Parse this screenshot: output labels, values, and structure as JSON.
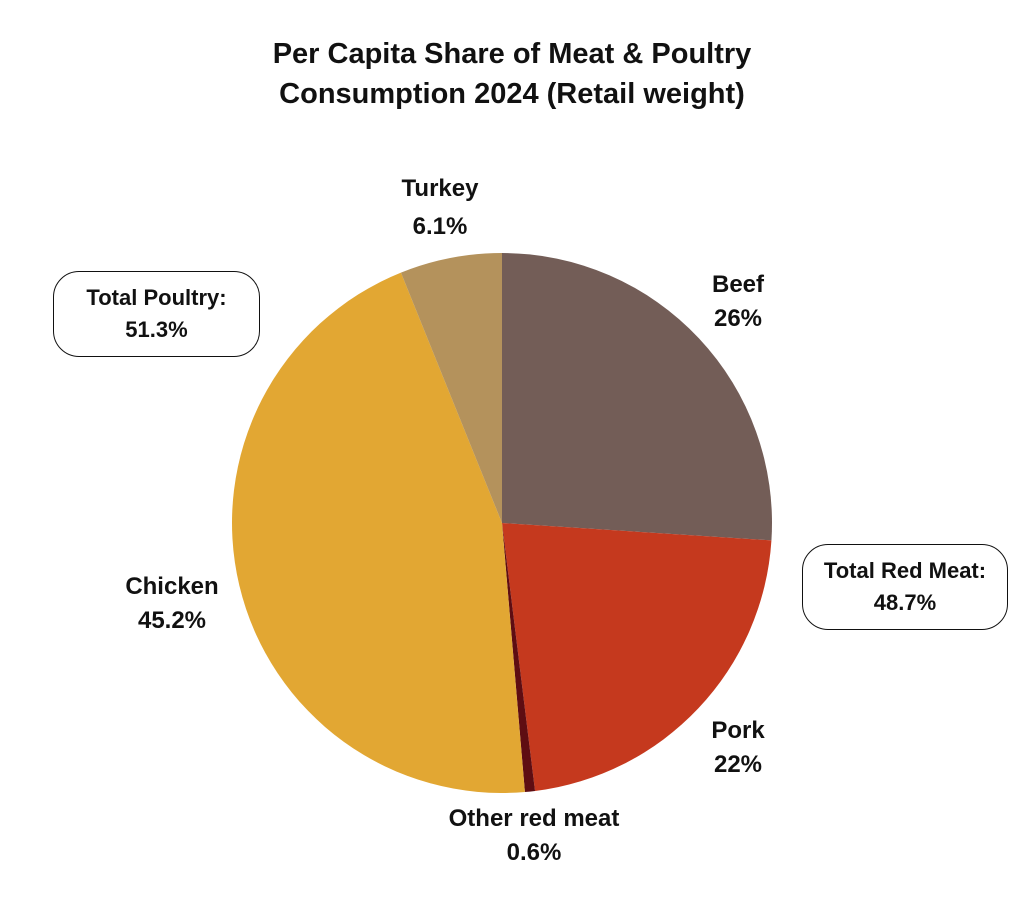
{
  "chart_data": {
    "type": "pie",
    "title_line1": "Per Capita Share of Meat & Poultry",
    "title_line2": "Consumption 2024 (Retail weight)",
    "slices": [
      {
        "name": "Beef",
        "value": 26,
        "value_label": "26%",
        "color": "#735d57"
      },
      {
        "name": "Pork",
        "value": 22,
        "value_label": "22%",
        "color": "#c5391e"
      },
      {
        "name": "Other red meat",
        "value": 0.6,
        "value_label": "0.6%",
        "color": "#5e0d12"
      },
      {
        "name": "Chicken",
        "value": 45.2,
        "value_label": "45.2%",
        "color": "#e2a733"
      },
      {
        "name": "Turkey",
        "value": 6.1,
        "value_label": "6.1%",
        "color": "#b4925c"
      }
    ],
    "annotations": [
      {
        "label": "Total Poultry:",
        "value": "51.3%"
      },
      {
        "label": "Total Red Meat:",
        "value": "48.7%"
      }
    ]
  }
}
